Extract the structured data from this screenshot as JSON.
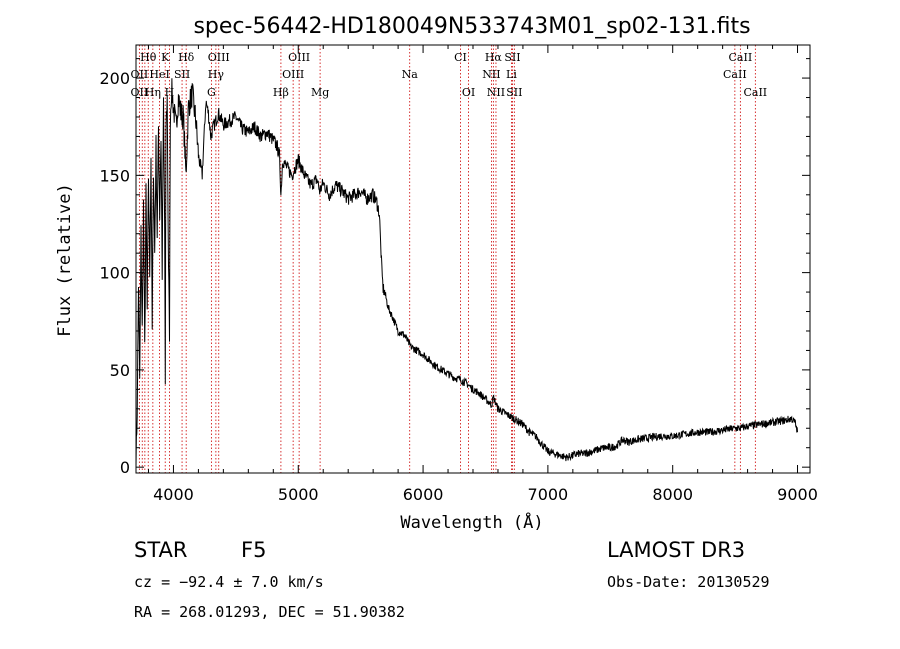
{
  "chart_data": {
    "type": "line",
    "title": "spec-56442-HD180049N533743M01_sp02-131.fits",
    "xlabel": "Wavelength (Å)",
    "ylabel": "Flux (relative)",
    "xlim": [
      3700,
      9100
    ],
    "ylim": [
      -3,
      217
    ],
    "xticks": [
      4000,
      5000,
      6000,
      7000,
      8000,
      9000
    ],
    "yticks": [
      0,
      50,
      100,
      150,
      200
    ],
    "series": [
      {
        "x": [
          3700,
          3710,
          3720,
          3730,
          3740,
          3750,
          3760,
          3770,
          3780,
          3790,
          3800,
          3810,
          3820,
          3830,
          3840,
          3850,
          3860,
          3870,
          3880,
          3890,
          3900,
          3910,
          3920,
          3930,
          3935,
          3940,
          3950,
          3960,
          3968,
          3975,
          3985,
          4000,
          4020,
          4040,
          4060,
          4080,
          4100,
          4120,
          4150,
          4180,
          4200,
          4230,
          4260,
          4280,
          4300,
          4320,
          4340,
          4360,
          4400,
          4450,
          4500,
          4550,
          4600,
          4650,
          4700,
          4750,
          4800,
          4830,
          4850,
          4861,
          4875,
          4900,
          4950,
          5000,
          5050,
          5100,
          5150,
          5172,
          5200,
          5250,
          5300,
          5350,
          5400,
          5450,
          5500,
          5550,
          5600,
          5630,
          5650,
          5660,
          5670,
          5680,
          5700,
          5720,
          5750,
          5800,
          5850,
          5900,
          5950,
          6000,
          6050,
          6100,
          6150,
          6200,
          6250,
          6300,
          6350,
          6400,
          6450,
          6500,
          6550,
          6563,
          6600,
          6650,
          6700,
          6750,
          6800,
          6850,
          6900,
          6950,
          7000,
          7050,
          7100,
          7150,
          7200,
          7250,
          7300,
          7350,
          7400,
          7450,
          7500,
          7550,
          7600,
          7650,
          7700,
          7800,
          7900,
          8000,
          8100,
          8200,
          8300,
          8400,
          8500,
          8542,
          8600,
          8700,
          8800,
          8900,
          8950,
          8980,
          9000
        ],
        "values": [
          0,
          30,
          95,
          45,
          120,
          70,
          135,
          60,
          140,
          80,
          150,
          100,
          160,
          70,
          155,
          110,
          165,
          120,
          175,
          130,
          170,
          100,
          185,
          120,
          40,
          175,
          190,
          105,
          70,
          180,
          195,
          185,
          175,
          190,
          182,
          180,
          150,
          185,
          192,
          178,
          160,
          150,
          188,
          182,
          170,
          175,
          178,
          182,
          176,
          178,
          180,
          174,
          172,
          175,
          170,
          172,
          168,
          165,
          160,
          140,
          158,
          155,
          150,
          158,
          150,
          145,
          148,
          142,
          146,
          140,
          145,
          142,
          138,
          140,
          142,
          138,
          140,
          136,
          130,
          115,
          100,
          92,
          88,
          82,
          78,
          70,
          68,
          62,
          60,
          58,
          55,
          52,
          50,
          48,
          46,
          45,
          43,
          40,
          38,
          35,
          32,
          36,
          30,
          28,
          26,
          24,
          22,
          18,
          16,
          12,
          8,
          7,
          6,
          5,
          6,
          7,
          7,
          8,
          9,
          10,
          10,
          11,
          14,
          13,
          14,
          15,
          16,
          16,
          17,
          18,
          18,
          19,
          20,
          20,
          21,
          22,
          23,
          24,
          25,
          23,
          18
        ]
      }
    ],
    "line_labels": [
      {
        "name": "Hθ",
        "x": 3798,
        "row": 1
      },
      {
        "name": "K",
        "x": 3934,
        "row": 1
      },
      {
        "name": "Hδ",
        "x": 4102,
        "row": 1
      },
      {
        "name": "OIII",
        "x": 4363,
        "row": 1
      },
      {
        "name": "OIII",
        "x": 5007,
        "row": 1
      },
      {
        "name": "CI",
        "x": 6300,
        "row": 1
      },
      {
        "name": "Hα",
        "x": 6563,
        "row": 1
      },
      {
        "name": "SII",
        "x": 6716,
        "row": 1
      },
      {
        "name": "CaII",
        "x": 8542,
        "row": 1
      },
      {
        "name": "OII",
        "x": 3727,
        "row": 2
      },
      {
        "name": "HeI",
        "x": 3889,
        "row": 2
      },
      {
        "name": "SII",
        "x": 4069,
        "row": 2
      },
      {
        "name": "Hγ",
        "x": 4340,
        "row": 2
      },
      {
        "name": "OIII",
        "x": 4959,
        "row": 2
      },
      {
        "name": "Na",
        "x": 5893,
        "row": 2
      },
      {
        "name": "NII",
        "x": 6548,
        "row": 2
      },
      {
        "name": "Li",
        "x": 6708,
        "row": 2
      },
      {
        "name": "CaII",
        "x": 8498,
        "row": 2
      },
      {
        "name": "OII",
        "x": 3727,
        "row": 3
      },
      {
        "name": "Hη",
        "x": 3835,
        "row": 3
      },
      {
        "name": "H",
        "x": 3968,
        "row": 3
      },
      {
        "name": "G",
        "x": 4304,
        "row": 3
      },
      {
        "name": "Hβ",
        "x": 4861,
        "row": 3
      },
      {
        "name": "Mg",
        "x": 5175,
        "row": 3
      },
      {
        "name": "OI",
        "x": 6364,
        "row": 3
      },
      {
        "name": "NII",
        "x": 6584,
        "row": 3
      },
      {
        "name": "SII",
        "x": 6731,
        "row": 3
      },
      {
        "name": "CaII",
        "x": 8662,
        "row": 3
      }
    ],
    "marker_lines": [
      3727,
      3750,
      3771,
      3798,
      3835,
      3889,
      3934,
      3968,
      4069,
      4102,
      4304,
      4340,
      4363,
      4861,
      4959,
      5007,
      5175,
      5893,
      6300,
      6364,
      6548,
      6563,
      6584,
      6708,
      6716,
      6731,
      8498,
      8542,
      8662
    ],
    "colors": {
      "spectrum": "#000000",
      "marker": "#cc0000"
    }
  },
  "info": {
    "class": "STAR",
    "subclass": "F5",
    "survey": "LAMOST DR3",
    "cz": "cz = −92.4 ± 7.0 km/s",
    "obsdate": "Obs-Date: 20130529",
    "radec": "RA = 268.01293, DEC =  51.90382"
  }
}
